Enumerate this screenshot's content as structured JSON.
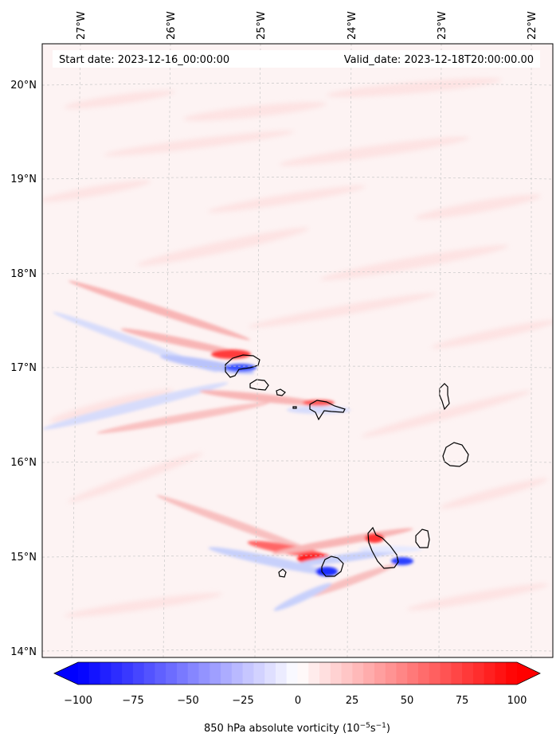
{
  "map": {
    "start_date_label": "Start date: 2023-12-16_00:00:00",
    "valid_date_label": "Valid_date: 2023-12-18T20:00:00.00",
    "lon_ticks": [
      "27°W",
      "26°W",
      "25°W",
      "24°W",
      "23°W",
      "22°W"
    ],
    "lat_ticks": [
      "20°N",
      "19°N",
      "18°N",
      "17°N",
      "16°N",
      "15°N",
      "14°N"
    ],
    "gridlines": "dashed",
    "field": "850 hPa absolute vorticity"
  },
  "colorbar": {
    "ticks": [
      "−100",
      "−75",
      "−50",
      "−25",
      "0",
      "25",
      "50",
      "75",
      "100"
    ],
    "label_main": "850 hPa absolute vorticity (10",
    "label_exp1": "−5",
    "label_mid": "s",
    "label_exp2": "−1",
    "label_end": ")",
    "min": -100,
    "max": 100,
    "extend": "both",
    "colors": {
      "negative": "#0000ff",
      "zero": "#ffffff",
      "positive": "#ff0000"
    }
  },
  "islands": [
    "Santo Antão",
    "São Vicente",
    "Santa Luzia",
    "São Nicolau",
    "Sal",
    "Boa Vista",
    "Maio",
    "Santiago",
    "Fogo",
    "Brava"
  ]
}
